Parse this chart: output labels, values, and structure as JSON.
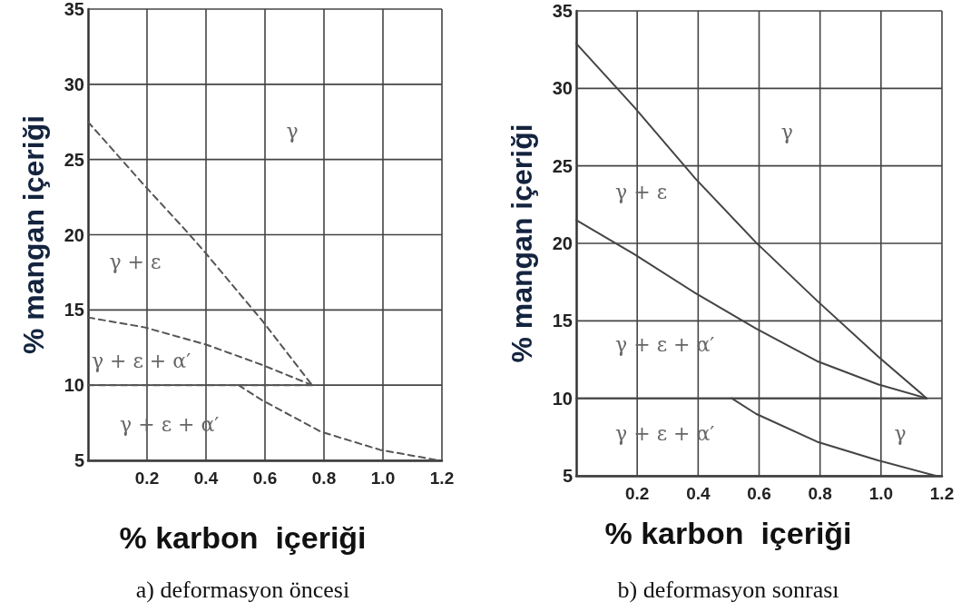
{
  "chart_data": [
    {
      "type": "line",
      "xlabel": "% karbon  içeriği",
      "ylabel": "% mangan içeriği",
      "line_style": "dashed",
      "marker": "none",
      "grid": true,
      "xlim": [
        0,
        1.2
      ],
      "ylim": [
        5,
        35
      ],
      "xticks": [
        0.2,
        0.4,
        0.6,
        0.8,
        {
          "value": 1,
          "label": "1.0"
        },
        1.2
      ],
      "yticks": [
        5,
        10,
        15,
        20,
        25,
        30,
        35
      ],
      "series": [
        {
          "color": "#555555",
          "x": [
            0,
            0.19,
            0.34,
            0.4,
            0.59,
            0.76
          ],
          "values": [
            27.5,
            23.3,
            20.1,
            18.75,
            14.3,
            10
          ]
        },
        {
          "color": "#555555",
          "x": [
            0,
            0.19,
            0.4,
            0.59,
            0.76
          ],
          "values": [
            14.5,
            13.85,
            12.7,
            11.35,
            10
          ]
        },
        {
          "color": "#555555",
          "x": [
            0,
            0.76
          ],
          "values": [
            10,
            10
          ]
        },
        {
          "color": "#555555",
          "x": [
            0.51,
            0.59,
            0.79,
            0.99,
            1.19
          ],
          "values": [
            10,
            9,
            6.9,
            5.7,
            5
          ]
        }
      ],
      "annotations": [
        "γ",
        "γ + ε",
        "γ + ε + α′",
        "γ + ε + α′",
        "a) deformasyon öncesi"
      ]
    },
    {
      "type": "line",
      "xlabel": "% karbon  içeriği",
      "ylabel": "% mangan içeriği",
      "line_style": "solid",
      "marker": "none",
      "grid": true,
      "xlim": [
        0,
        1.2
      ],
      "ylim": [
        5,
        35
      ],
      "xticks": [
        0.2,
        0.4,
        0.6,
        0.8,
        {
          "value": 1,
          "label": "1.0"
        },
        1.2
      ],
      "yticks": [
        5,
        10,
        15,
        20,
        25,
        30,
        35
      ],
      "series": [
        {
          "color": "#444444",
          "x": [
            0,
            0.19,
            0.39,
            0.59,
            0.79,
            0.99,
            1.15
          ],
          "values": [
            32.9,
            28.8,
            24.2,
            20.05,
            16.3,
            12.7,
            10
          ]
        },
        {
          "color": "#444444",
          "x": [
            0,
            0.19,
            0.39,
            0.59,
            0.79,
            0.99,
            1.15
          ],
          "values": [
            21.5,
            19.3,
            16.8,
            14.5,
            12.4,
            10.9,
            10
          ]
        },
        {
          "color": "#444444",
          "x": [
            0,
            1.15
          ],
          "values": [
            10,
            10
          ]
        },
        {
          "color": "#444444",
          "x": [
            0.51,
            0.59,
            0.79,
            0.99,
            1.18
          ],
          "values": [
            10,
            9,
            7.2,
            6,
            5
          ]
        }
      ],
      "annotations": [
        "γ",
        "γ + ε",
        "γ + ε + α′",
        "γ + ε + α′",
        "γ",
        "b) deformasyon sonrası"
      ]
    }
  ]
}
